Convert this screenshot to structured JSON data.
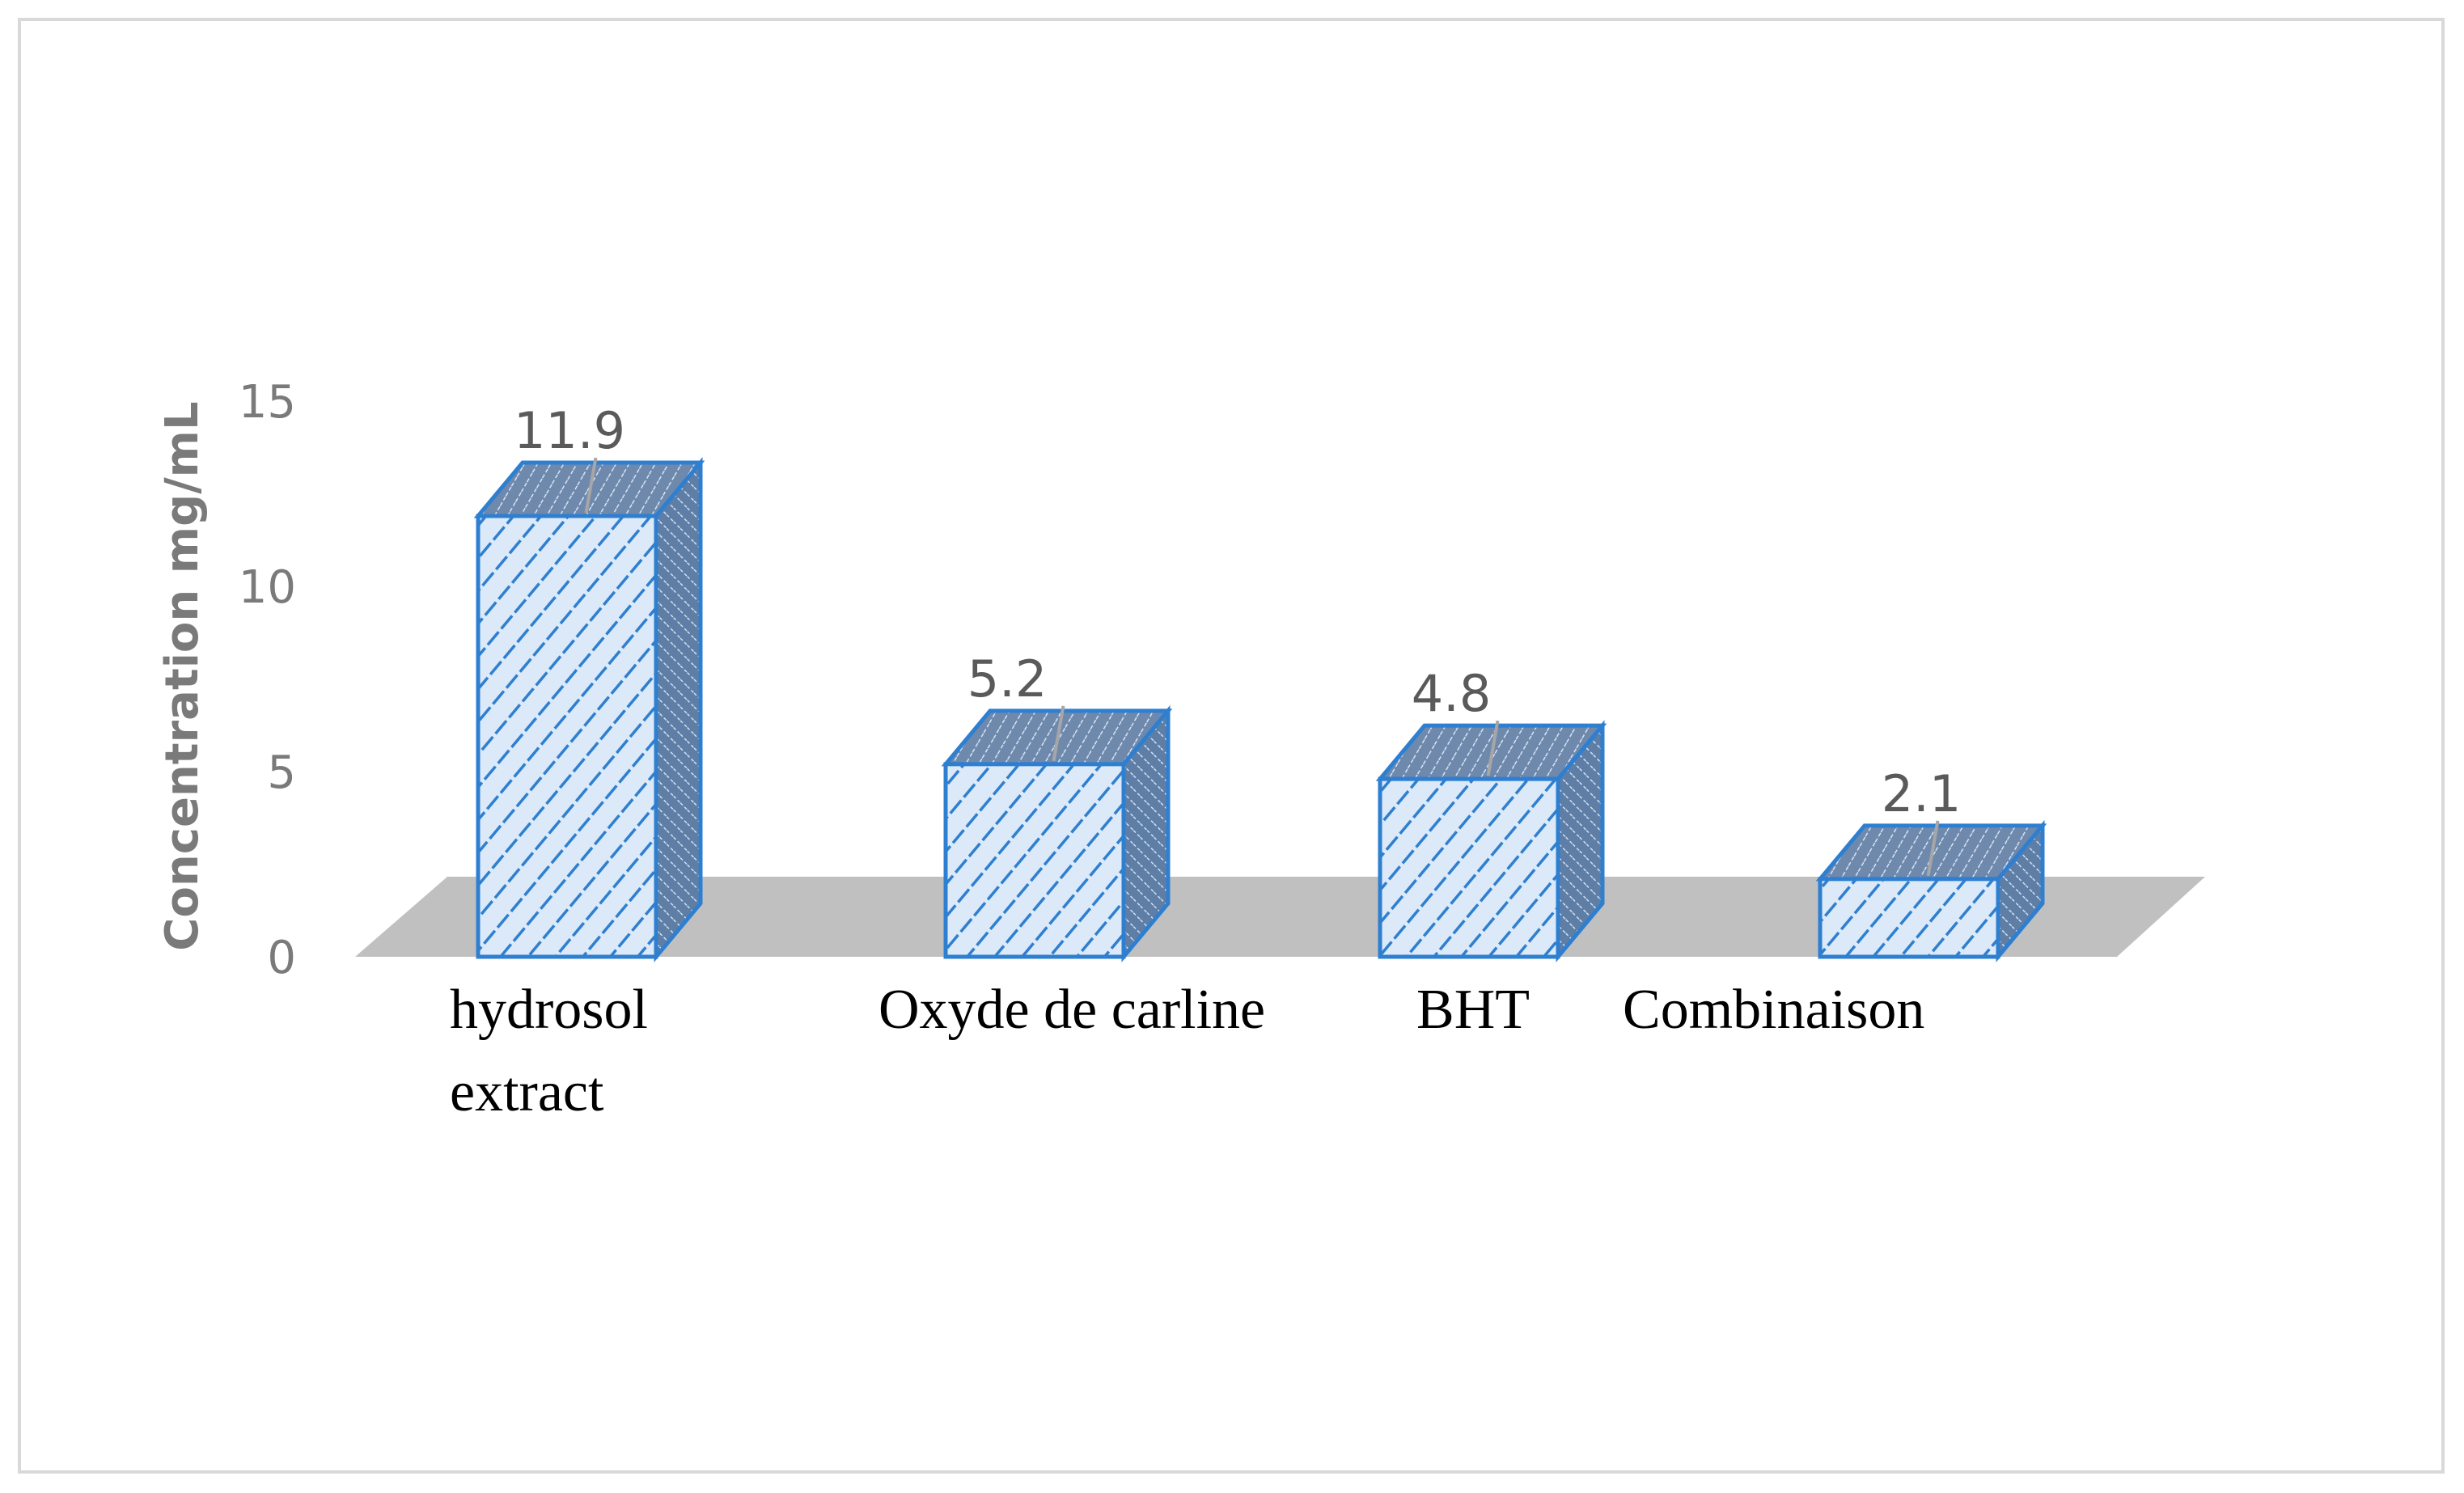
{
  "chart_data": {
    "type": "bar",
    "style": "3d",
    "title": "",
    "xlabel": "",
    "ylabel": "Concentration mg/mL",
    "ylim": [
      0,
      15
    ],
    "yticks": [
      0,
      5,
      10,
      15
    ],
    "categories": [
      "hydrosol extract",
      "Oxyde de carline",
      "BHT",
      "Combinaison"
    ],
    "category_lines": [
      [
        "hydrosol",
        "extract"
      ],
      [
        "Oxyde de carline"
      ],
      [
        "BHT"
      ],
      [
        "Combinaison"
      ]
    ],
    "values": [
      11.9,
      5.2,
      4.8,
      2.1
    ],
    "data_labels": [
      "11.9",
      "5.2",
      "4.8",
      "2.1"
    ],
    "grid": false,
    "legend": "none"
  },
  "colors": {
    "bar_edge": "#2f7fd0",
    "bar_fill": "#dbe9f8",
    "bar_hatch": "#2f7fd0",
    "bar_side": "#5f7ea6",
    "floor": "#c0c0c0",
    "tick_text": "#7a7a7a",
    "frame": "#d9d9d9"
  }
}
